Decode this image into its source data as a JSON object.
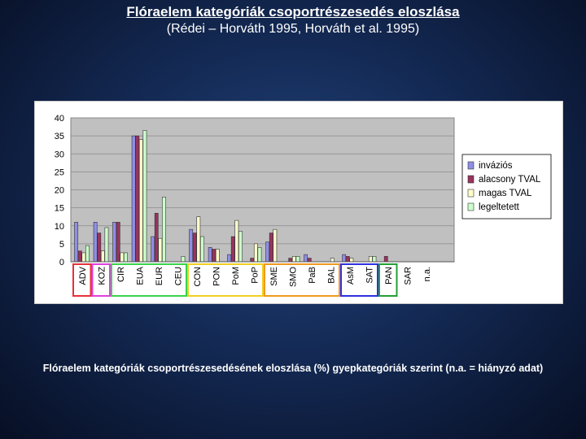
{
  "slide": {
    "title": "Flóraelem kategóriák csoportrészesedés eloszlása",
    "subtitle": "(Rédei – Horváth 1995, Horváth et al. 1995)",
    "caption": "Flóraelem kategóriák csoportrészesedésének eloszlása (%) gyepkategóriák szerint (n.a. = hiányzó adat)"
  },
  "chart_data": {
    "type": "bar",
    "title": "",
    "xlabel": "",
    "ylabel": "",
    "ylim": [
      0,
      40
    ],
    "yticks": [
      0,
      5,
      10,
      15,
      20,
      25,
      30,
      35,
      40
    ],
    "grid": true,
    "legend_position": "right",
    "categories": [
      "ADV",
      "KOZ",
      "CIR",
      "EUA",
      "EUR",
      "CEU",
      "CON",
      "PON",
      "PoM",
      "PoP",
      "SME",
      "SMO",
      "PaB",
      "BAL",
      "AsM",
      "SAT",
      "PAN",
      "SAR",
      "n.a."
    ],
    "series": [
      {
        "name": "inváziós",
        "color": "#8f8fe6",
        "values": [
          11,
          11,
          11,
          35,
          7,
          0,
          9,
          4,
          2,
          0,
          5.5,
          0,
          2,
          0,
          2,
          0,
          0,
          0,
          0
        ]
      },
      {
        "name": "alacsony TVAL",
        "color": "#99335e",
        "values": [
          3,
          8,
          11,
          35,
          13.5,
          0,
          8,
          3.5,
          7,
          1,
          8,
          1,
          1,
          0,
          1.5,
          0,
          1.5,
          0,
          0
        ]
      },
      {
        "name": "magas TVAL",
        "color": "#ffffcc",
        "values": [
          2.5,
          3,
          2.5,
          34,
          6.5,
          0,
          12.5,
          3.5,
          11.5,
          5,
          9,
          1.5,
          0,
          1,
          1,
          1.5,
          0,
          0,
          0
        ]
      },
      {
        "name": "legeltetett",
        "color": "#ccffcc",
        "values": [
          4.5,
          9.5,
          2.5,
          36.5,
          18,
          1.5,
          7,
          0,
          8.5,
          4,
          0,
          1.5,
          0,
          0,
          0,
          1.5,
          0,
          0,
          0
        ]
      }
    ],
    "groups": [
      {
        "color": "#e8303c",
        "from": 0,
        "to": 0
      },
      {
        "color": "#e040e0",
        "from": 1,
        "to": 1
      },
      {
        "color": "#3ad34a",
        "from": 2,
        "to": 5
      },
      {
        "color": "#f0d020",
        "from": 6,
        "to": 9
      },
      {
        "color": "#f09a20",
        "from": 10,
        "to": 13
      },
      {
        "color": "#3030e0",
        "from": 14,
        "to": 15
      },
      {
        "color": "#22a036",
        "from": 16,
        "to": 16
      }
    ]
  }
}
